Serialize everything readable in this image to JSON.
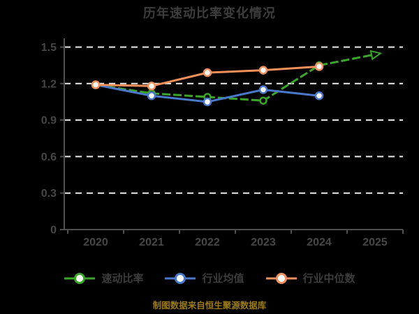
{
  "title": "历年速动比率变化情况",
  "caption": "制图数据来自恒生聚源数据库",
  "colors": {
    "background": "#000000",
    "title_text": "#3d3d3d",
    "axis": "#4f4f4f",
    "tick_label": "#464646",
    "gridline": "#ececec",
    "legend_text": "#3d3d3d",
    "caption_text": "#9c7c10"
  },
  "chart_data": {
    "type": "line",
    "title": "历年速动比率变化情况",
    "categories": [
      "2020",
      "2021",
      "2022",
      "2023",
      "2024",
      "2025"
    ],
    "series": [
      {
        "name": "速动比率",
        "color": "#3ca62c",
        "marker": "circle-dark",
        "dash": "12 4",
        "end_marker": "triangle",
        "values": [
          1.19,
          1.12,
          1.09,
          1.06,
          1.35,
          1.44
        ]
      },
      {
        "name": "行业均值",
        "color": "#4a79cc",
        "marker": "circle-white",
        "values": [
          1.19,
          1.1,
          1.05,
          1.15,
          1.1,
          null
        ]
      },
      {
        "name": "行业中位数",
        "color": "#f0905a",
        "marker": "circle-white",
        "values": [
          1.19,
          1.18,
          1.29,
          1.31,
          1.34,
          null
        ]
      }
    ],
    "ylim": [
      0,
      1.5
    ],
    "yticks": [
      {
        "value": 0,
        "label": "0"
      },
      {
        "value": 0.3,
        "label": "0.3"
      },
      {
        "value": 0.6,
        "label": "0.6"
      },
      {
        "value": 0.9,
        "label": "0.9"
      },
      {
        "value": 1.2,
        "label": "1.2"
      },
      {
        "value": 1.5,
        "label": "1.5"
      }
    ],
    "grid": "dashed-horizontal",
    "legend_position": "bottom"
  }
}
